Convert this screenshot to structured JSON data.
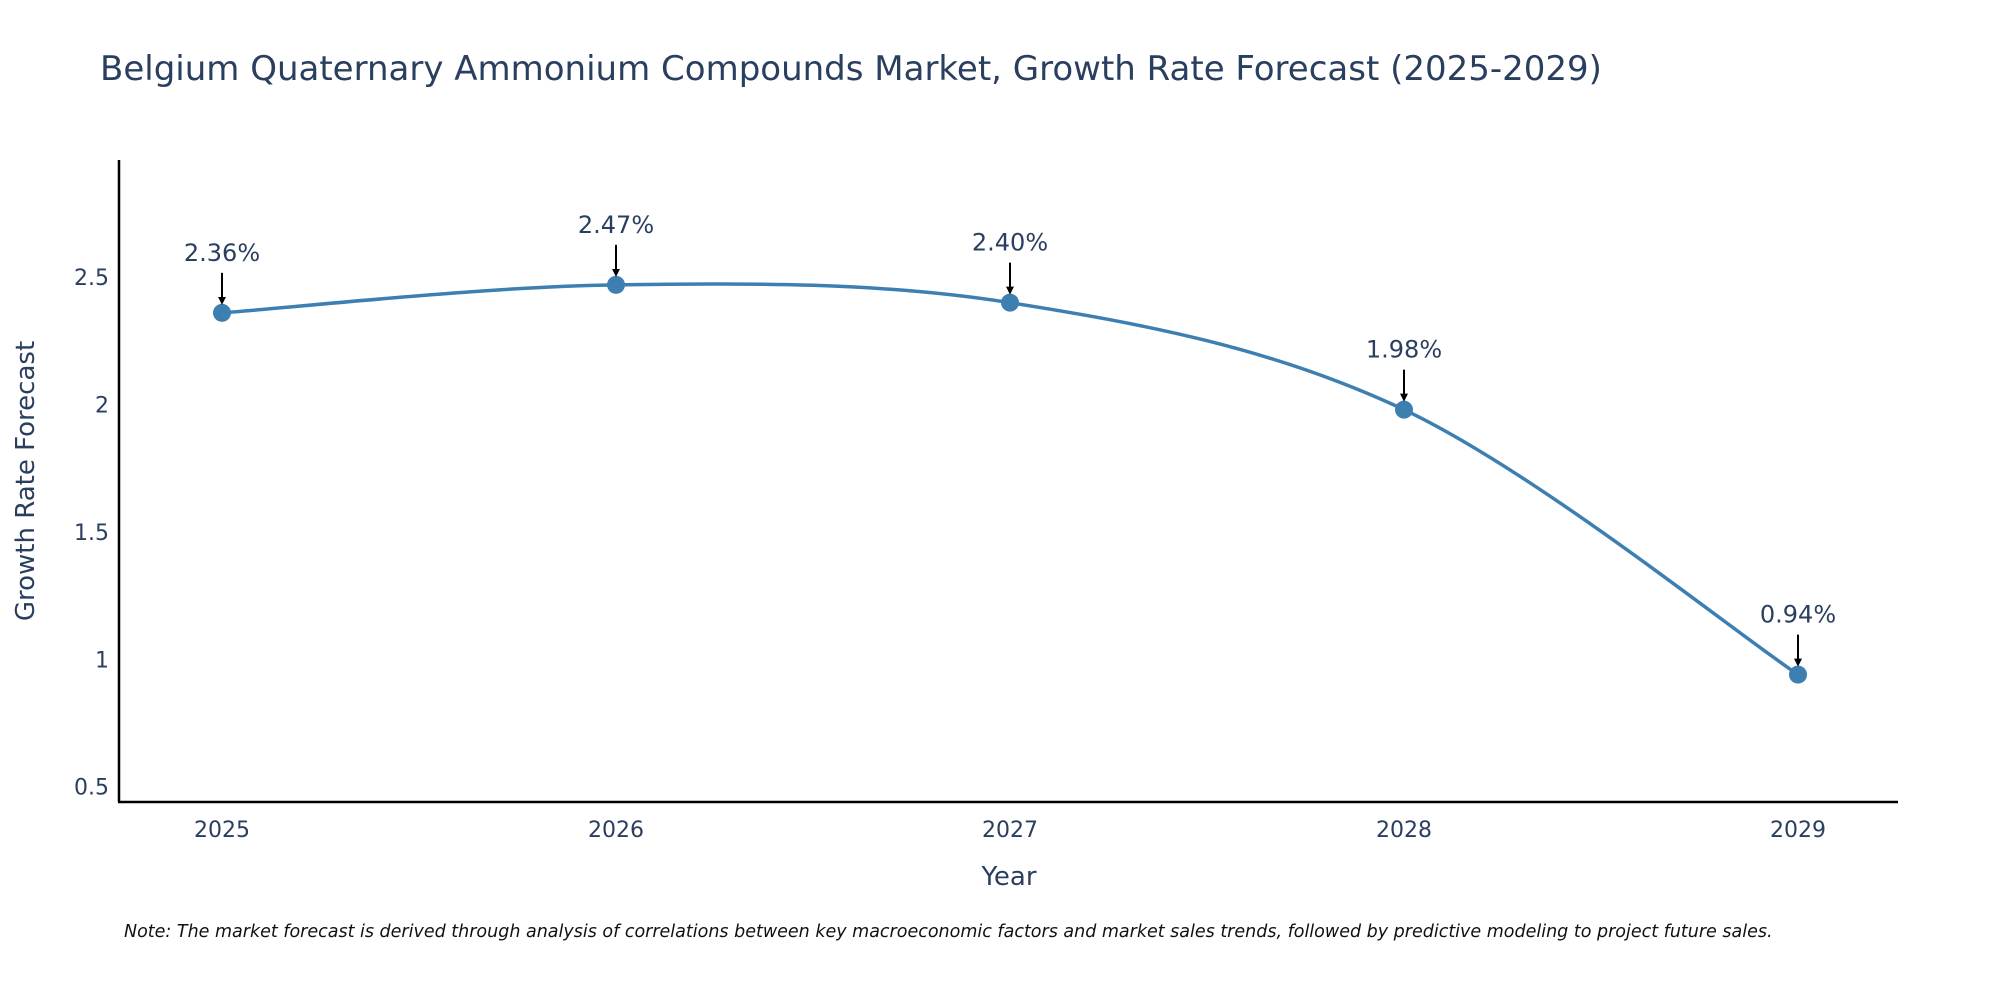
{
  "chart_data": {
    "type": "line",
    "title": "Belgium Quaternary Ammonium Compounds Market, Growth Rate Forecast (2025-2029)",
    "xlabel": "Year",
    "ylabel": "Growth Rate Forecast",
    "categories": [
      "2025",
      "2026",
      "2027",
      "2028",
      "2029"
    ],
    "values": [
      2.36,
      2.47,
      2.4,
      1.98,
      0.94
    ],
    "data_labels": [
      "2.36%",
      "2.47%",
      "2.40%",
      "1.98%",
      "0.94%"
    ],
    "y_ticks": [
      0.5,
      1,
      1.5,
      2,
      2.5
    ],
    "y_tick_labels": [
      "0.5",
      "1",
      "1.5",
      "2",
      "2.5"
    ],
    "ylim": [
      0.44,
      2.96
    ],
    "line_shape": "spline",
    "grid": false,
    "colors": {
      "line": "#3d7fb1",
      "marker": "#3d7fb1",
      "text": "#2a3f5f",
      "axis": "#000000",
      "arrow": "#000000"
    },
    "note": "Note: The market forecast is derived through analysis of correlations between key macroeconomic factors and market sales trends, followed by predictive modeling to project future sales."
  }
}
